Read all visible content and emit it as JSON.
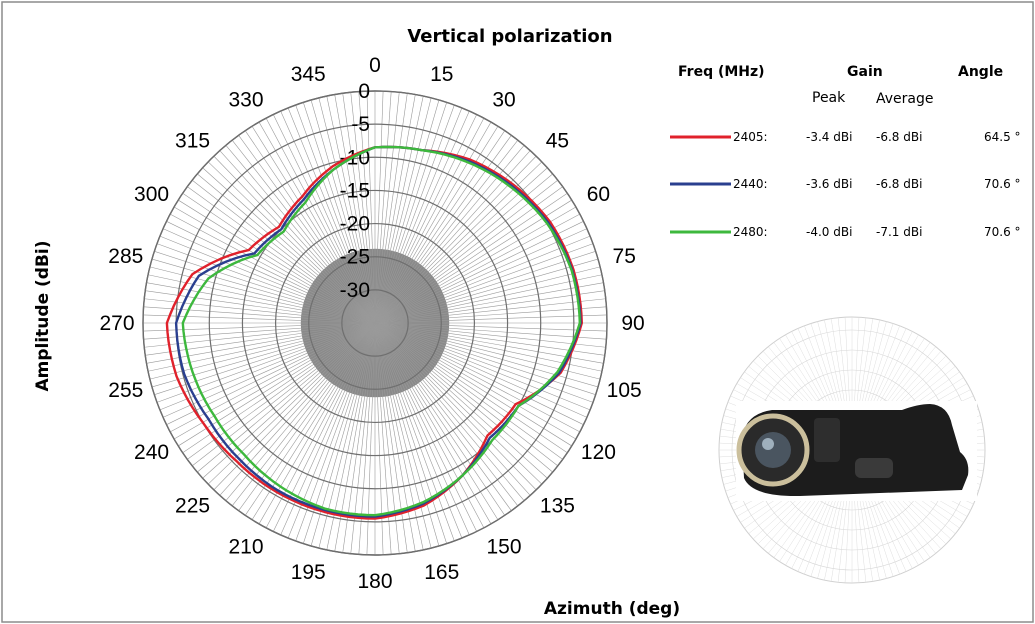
{
  "chart_data": {
    "type": "polar-line",
    "title": "Vertical polarization",
    "xlabel": "Azimuth (deg)",
    "ylabel": "Amplitude (dBi)",
    "angle_ticks": [
      "0",
      "15",
      "30",
      "45",
      "60",
      "75",
      "90",
      "105",
      "120",
      "135",
      "150",
      "165",
      "180",
      "195",
      "210",
      "225",
      "240",
      "255",
      "270",
      "285",
      "300",
      "315",
      "330",
      "345"
    ],
    "radial_ticks": [
      "0",
      "-5",
      "-10",
      "-15",
      "-20",
      "-25",
      "-30"
    ],
    "radial_range": [
      -35,
      0
    ],
    "grid": true,
    "series": [
      {
        "name": "2405:",
        "color": "#e0212b",
        "peak": "-3.4 dBi",
        "average": "-6.8 dBi",
        "angle": "64.5 °",
        "angles": [
          0,
          15,
          30,
          45,
          60,
          75,
          90,
          105,
          120,
          135,
          150,
          165,
          180,
          195,
          210,
          225,
          240,
          255,
          270,
          285,
          300,
          315,
          330,
          345
        ],
        "values": [
          -8.5,
          -8,
          -6.5,
          -5.5,
          -4.5,
          -4.0,
          -3.8,
          -6.0,
          -10.5,
          -11.0,
          -8.5,
          -6.5,
          -5.5,
          -5.5,
          -5.5,
          -5.5,
          -5.0,
          -4.0,
          -3.6,
          -6.5,
          -13.0,
          -14.5,
          -13.0,
          -10.5
        ]
      },
      {
        "name": "2440:",
        "color": "#2a3f8f",
        "peak": "-3.6 dBi",
        "average": "-6.8 dBi",
        "angle": "70.6 °",
        "angles": [
          0,
          15,
          30,
          45,
          60,
          75,
          90,
          105,
          120,
          135,
          150,
          165,
          180,
          195,
          210,
          225,
          240,
          255,
          270,
          285,
          300,
          315,
          330,
          345
        ],
        "values": [
          -8.5,
          -8,
          -6.8,
          -5.8,
          -4.8,
          -4.2,
          -4.0,
          -6.2,
          -10.0,
          -10.5,
          -8.5,
          -6.8,
          -5.8,
          -5.8,
          -5.8,
          -6.0,
          -6.0,
          -5.2,
          -5.0,
          -7.5,
          -14.0,
          -15.0,
          -13.5,
          -11.0
        ]
      },
      {
        "name": "2480:",
        "color": "#3db83d",
        "peak": "-4.0 dBi",
        "average": "-7.1 dBi",
        "angle": "70.6 °",
        "angles": [
          0,
          15,
          30,
          45,
          60,
          75,
          90,
          105,
          120,
          135,
          150,
          165,
          180,
          195,
          210,
          225,
          240,
          255,
          270,
          285,
          300,
          315,
          330,
          345
        ],
        "values": [
          -8.5,
          -8,
          -7.0,
          -6.0,
          -5.0,
          -4.3,
          -4.1,
          -6.5,
          -10.0,
          -10.0,
          -8.5,
          -7.0,
          -6.0,
          -6.0,
          -6.5,
          -7.0,
          -7.0,
          -6.5,
          -6.0,
          -9.0,
          -14.5,
          -15.5,
          -14.0,
          -11.0
        ]
      }
    ]
  },
  "legend": {
    "freq_header": "Freq (MHz)",
    "gain_header": "Gain",
    "angle_header": "Angle",
    "peak_header": "Peak",
    "average_header": "Average"
  },
  "colors": {
    "inner_fill": "#8a8a8a",
    "frame": "#8c8c8c",
    "camera_body": "#1c1c1c"
  },
  "icons": {
    "inset": "thermal-camera-photo"
  }
}
